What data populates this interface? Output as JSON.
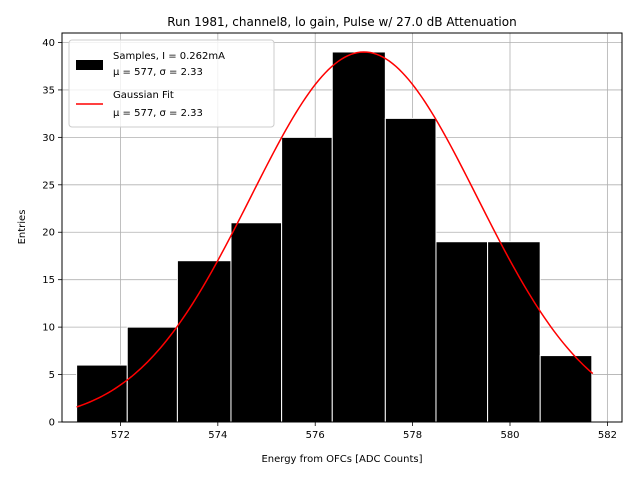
{
  "chart_data": {
    "type": "bar",
    "title": "Run 1981, channel8, lo gain, Pulse w/ 27.0 dB Attenuation",
    "xlabel": "Energy from OFCs [ADC Counts]",
    "ylabel": "Entries",
    "xlim": [
      570.8,
      582.3
    ],
    "ylim": [
      0,
      41
    ],
    "xticks": [
      572,
      574,
      576,
      578,
      580,
      582
    ],
    "yticks": [
      0,
      5,
      10,
      15,
      20,
      25,
      30,
      35,
      40
    ],
    "grid": true,
    "bin_edges": [
      571.1,
      572.14,
      573.17,
      574.27,
      575.31,
      576.35,
      577.44,
      578.48,
      579.54,
      580.62,
      581.68
    ],
    "values": [
      6,
      10,
      17,
      21,
      30,
      39,
      32,
      19,
      19,
      7
    ],
    "bar_color": "#000000",
    "bar_edge_color": "#ffffff",
    "fit": {
      "name": "Gaussian Fit",
      "mu": 577.0,
      "sigma": 2.33,
      "amplitude": 39.0,
      "x_range": [
        571.1,
        581.7
      ],
      "color": "#ff0000"
    },
    "legend": {
      "placement": "top-left",
      "entries": [
        {
          "line1": "Samples, I = 0.262mA",
          "line2": "μ = 577, σ = 2.33",
          "kind": "bar",
          "color": "#000000"
        },
        {
          "line1": "Gaussian Fit",
          "line2": "μ = 577, σ = 2.33",
          "kind": "line",
          "color": "#ff0000"
        }
      ]
    }
  }
}
